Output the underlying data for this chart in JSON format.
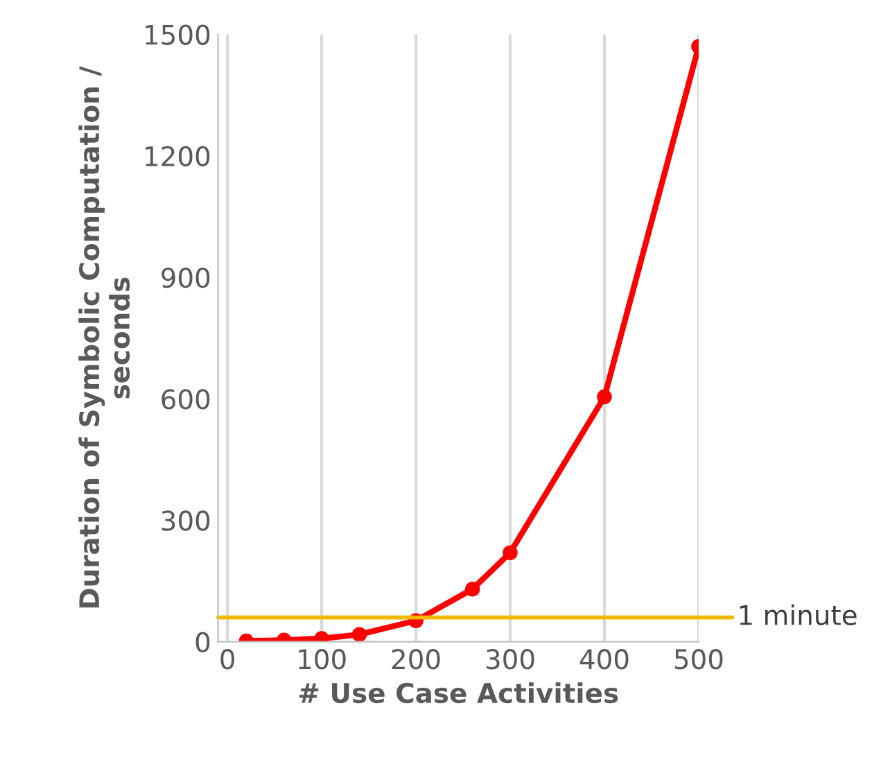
{
  "chart_data": {
    "type": "line",
    "xlabel": "# Use Case Activities",
    "ylabel": "Duration of Symbolic Computation /\nseconds",
    "x": [
      20,
      60,
      100,
      140,
      200,
      260,
      300,
      400,
      500
    ],
    "series": [
      {
        "color": "#ff0000",
        "values": [
          2,
          4,
          8,
          18,
          52,
          130,
          220,
          605,
          1470
        ]
      }
    ],
    "marker": "circle",
    "line_style": "solid",
    "grid": "x",
    "xlim": [
      -10,
      500
    ],
    "xticks": [
      0,
      100,
      200,
      300,
      400,
      500
    ],
    "ylim": [
      0,
      1500
    ],
    "yticks": [
      0,
      300,
      600,
      900,
      1200,
      1500
    ],
    "ref_lines": [
      {
        "axis": "y",
        "value": 60,
        "label": "1 minute",
        "color": "#f5b800"
      }
    ]
  }
}
